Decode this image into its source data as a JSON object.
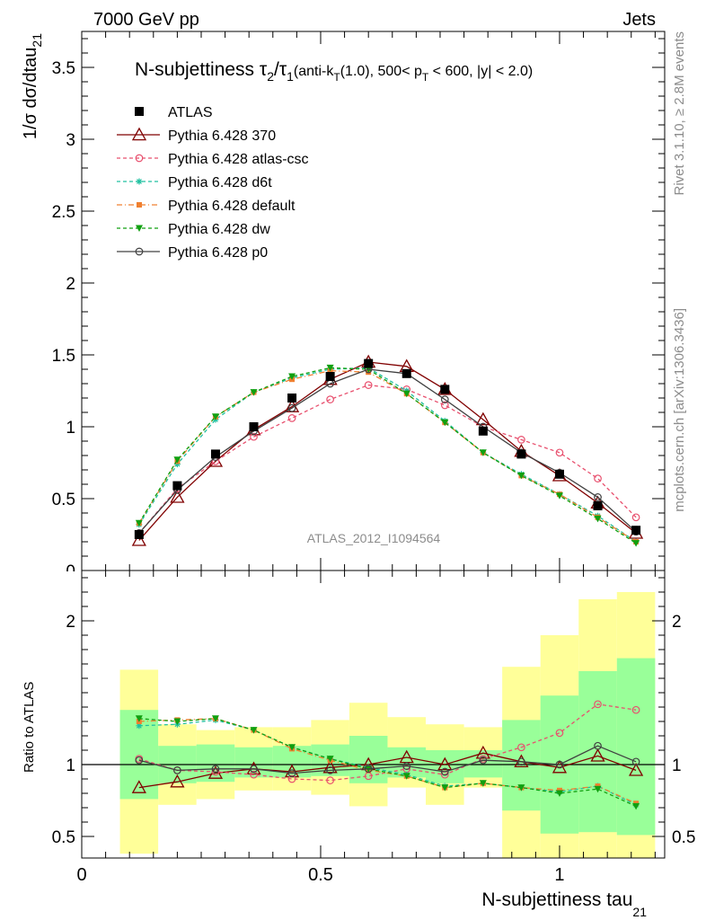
{
  "header": {
    "left": "7000 GeV pp",
    "right": "Jets"
  },
  "side": {
    "rivet": "Rivet 3.1.10, ≥ 2.8M events",
    "mcplots": "mcplots.cern.ch [arXiv:1306.3436]"
  },
  "title": {
    "main": "N-subjettiness τ",
    "sub_a": "2",
    "slash": "/τ",
    "sub_b": "1",
    "cuts_a": "(anti-k",
    "cuts_sub": "T",
    "cuts_b": "(1.0), 500< p",
    "cuts_sub2": "T",
    "cuts_c": " < 600, |y| < 2.0)"
  },
  "watermark": "ATLAS_2012_I1094564",
  "ylabel_main": "1/σ dσ/dtau",
  "ylabel_main_sub": "21",
  "ylabel_ratio": "Ratio to ATLAS",
  "xlabel": "N-subjettiness tau",
  "xlabel_sub": "21",
  "chart_data": [
    {
      "type": "line",
      "panel": "main",
      "xlim": [
        0,
        1.22
      ],
      "ylim": [
        0,
        3.75
      ],
      "yticks": [
        0.5,
        1,
        1.5,
        2,
        2.5,
        3,
        3.5
      ],
      "yticklabels": [
        "0.5",
        "1",
        "1.5",
        "2",
        "2.5",
        "3",
        "3.5"
      ],
      "x": [
        0.12,
        0.2,
        0.28,
        0.36,
        0.44,
        0.52,
        0.6,
        0.68,
        0.76,
        0.84,
        0.92,
        1.0,
        1.08,
        1.16
      ],
      "data": {
        "name": "ATLAS",
        "values": [
          0.25,
          0.59,
          0.81,
          1.0,
          1.2,
          1.35,
          1.44,
          1.37,
          1.26,
          0.97,
          0.81,
          0.67,
          0.45,
          0.28
        ]
      },
      "series": [
        {
          "name": "Pythia 6.428 370",
          "color": "#800000",
          "marker": "triangle-open",
          "dash": "solid",
          "values": [
            0.21,
            0.51,
            0.76,
            0.98,
            1.14,
            1.33,
            1.45,
            1.42,
            1.26,
            1.05,
            0.83,
            0.66,
            0.47,
            0.26
          ]
        },
        {
          "name": "Pythia 6.428 atlas-csc",
          "color": "#e8506e",
          "marker": "circle-open",
          "dash": "dashed",
          "values": [
            0.26,
            0.57,
            0.76,
            0.93,
            1.06,
            1.19,
            1.29,
            1.26,
            1.15,
            1.0,
            0.91,
            0.82,
            0.64,
            0.37
          ]
        },
        {
          "name": "Pythia 6.428 d6t",
          "color": "#20c0a0",
          "marker": "star",
          "dash": "dashed",
          "values": [
            0.32,
            0.74,
            1.05,
            1.24,
            1.34,
            1.4,
            1.41,
            1.25,
            1.04,
            0.82,
            0.67,
            0.53,
            0.38,
            0.2
          ]
        },
        {
          "name": "Pythia 6.428 default",
          "color": "#f08030",
          "marker": "square",
          "dash": "dashdot",
          "values": [
            0.33,
            0.76,
            1.07,
            1.24,
            1.33,
            1.39,
            1.38,
            1.23,
            1.03,
            0.82,
            0.66,
            0.53,
            0.37,
            0.2
          ]
        },
        {
          "name": "Pythia 6.428 dw",
          "color": "#10a010",
          "marker": "triangle-down",
          "dash": "dashed",
          "values": [
            0.33,
            0.77,
            1.07,
            1.24,
            1.35,
            1.41,
            1.4,
            1.23,
            1.03,
            0.82,
            0.66,
            0.52,
            0.36,
            0.19
          ]
        },
        {
          "name": "Pythia 6.428 p0",
          "color": "#404040",
          "marker": "circle-open",
          "dash": "solid",
          "values": [
            0.26,
            0.56,
            0.79,
            0.97,
            1.13,
            1.3,
            1.4,
            1.37,
            1.19,
            1.0,
            0.82,
            0.68,
            0.51,
            0.27
          ]
        }
      ]
    },
    {
      "type": "line",
      "panel": "ratio",
      "xlim": [
        0,
        1.22
      ],
      "ylim": [
        0.35,
        2.35
      ],
      "yticks": [
        0.5,
        1,
        2
      ],
      "yticklabels": [
        "0.5",
        "1",
        "2"
      ],
      "xticks": [
        0,
        0.5,
        1
      ],
      "xticklabels": [
        "0",
        "0.5",
        "1"
      ],
      "bins": [
        [
          0.08,
          0.16
        ],
        [
          0.16,
          0.24
        ],
        [
          0.24,
          0.32
        ],
        [
          0.32,
          0.4
        ],
        [
          0.4,
          0.48
        ],
        [
          0.48,
          0.56
        ],
        [
          0.56,
          0.64
        ],
        [
          0.64,
          0.72
        ],
        [
          0.72,
          0.8
        ],
        [
          0.8,
          0.88
        ],
        [
          0.88,
          0.96
        ],
        [
          0.96,
          1.04
        ],
        [
          1.04,
          1.12
        ],
        [
          1.12,
          1.2
        ]
      ],
      "band_total": [
        [
          0.38,
          1.66
        ],
        [
          0.72,
          1.28
        ],
        [
          0.76,
          1.24
        ],
        [
          0.82,
          1.26
        ],
        [
          0.82,
          1.26
        ],
        [
          0.79,
          1.31
        ],
        [
          0.71,
          1.43
        ],
        [
          0.84,
          1.33
        ],
        [
          0.72,
          1.28
        ],
        [
          0.84,
          1.26
        ],
        [
          0.35,
          1.68
        ],
        [
          0.35,
          1.9
        ],
        [
          0.35,
          2.15
        ],
        [
          0.35,
          2.2
        ]
      ],
      "band_stat": [
        [
          0.76,
          1.38
        ],
        [
          0.87,
          1.13
        ],
        [
          0.88,
          1.14
        ],
        [
          0.91,
          1.12
        ],
        [
          0.91,
          1.13
        ],
        [
          0.92,
          1.14
        ],
        [
          0.87,
          1.2
        ],
        [
          0.91,
          1.12
        ],
        [
          0.87,
          1.1
        ],
        [
          0.91,
          1.1
        ],
        [
          0.68,
          1.31
        ],
        [
          0.52,
          1.48
        ],
        [
          0.53,
          1.65
        ],
        [
          0.51,
          1.74
        ]
      ],
      "x": [
        0.12,
        0.2,
        0.28,
        0.36,
        0.44,
        0.52,
        0.6,
        0.68,
        0.76,
        0.84,
        0.92,
        1.0,
        1.08,
        1.16
      ],
      "series": [
        {
          "name": "Pythia 6.428 370",
          "values": [
            0.84,
            0.88,
            0.94,
            0.97,
            0.95,
            0.98,
            1.0,
            1.05,
            1.0,
            1.08,
            1.02,
            0.98,
            1.06,
            0.96
          ]
        },
        {
          "name": "Pythia 6.428 atlas-csc",
          "values": [
            1.04,
            0.96,
            0.95,
            0.93,
            0.9,
            0.89,
            0.92,
            0.97,
            0.93,
            1.04,
            1.12,
            1.22,
            1.42,
            1.38
          ]
        },
        {
          "name": "Pythia 6.428 d6t",
          "values": [
            1.27,
            1.28,
            1.31,
            1.24,
            1.12,
            1.04,
            0.98,
            0.93,
            0.85,
            0.87,
            0.84,
            0.81,
            0.85,
            0.72
          ]
        },
        {
          "name": "Pythia 6.428 default",
          "values": [
            1.3,
            1.31,
            1.32,
            1.24,
            1.11,
            1.03,
            0.96,
            0.92,
            0.84,
            0.87,
            0.84,
            0.82,
            0.85,
            0.73
          ]
        },
        {
          "name": "Pythia 6.428 dw",
          "values": [
            1.32,
            1.3,
            1.32,
            1.24,
            1.12,
            1.04,
            0.97,
            0.92,
            0.84,
            0.87,
            0.84,
            0.8,
            0.83,
            0.71
          ]
        },
        {
          "name": "Pythia 6.428 p0",
          "values": [
            1.03,
            0.96,
            0.97,
            0.97,
            0.94,
            0.96,
            0.97,
            0.99,
            0.95,
            1.03,
            1.02,
            1.0,
            1.13,
            1.02
          ]
        }
      ]
    }
  ]
}
